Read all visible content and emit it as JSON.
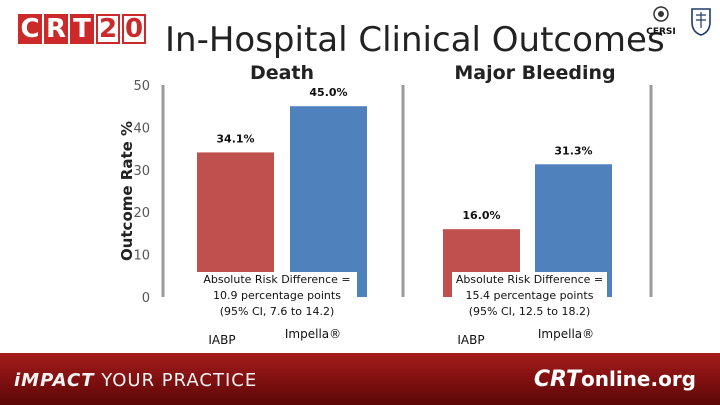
{
  "header": {
    "logo_letters": [
      "C",
      "R",
      "T",
      "2",
      "0"
    ],
    "title": "In-Hospital Clinical Outcomes",
    "cersi_label": "CERSI"
  },
  "chart_data": [
    {
      "type": "bar",
      "title": "Death",
      "ylabel": "Outcome Rate %",
      "ylim": [
        0,
        50
      ],
      "yticks": [
        0,
        10,
        20,
        30,
        40,
        50
      ],
      "categories": [
        "IABP",
        "Impella®"
      ],
      "values": [
        34.1,
        45.0
      ],
      "data_labels": [
        "34.1%",
        "45.0%"
      ],
      "colors": [
        "#c0504d",
        "#4f81bd"
      ],
      "annotation": [
        "Absolute Risk Difference =",
        "10.9 percentage points",
        "(95% CI, 7.6 to 14.2)"
      ]
    },
    {
      "type": "bar",
      "title": "Major Bleeding",
      "categories": [
        "IABP",
        "Impella®"
      ],
      "values": [
        16.0,
        31.3
      ],
      "data_labels": [
        "16.0%",
        "31.3%"
      ],
      "colors": [
        "#c0504d",
        "#4f81bd"
      ],
      "annotation": [
        "Absolute Risk Difference =",
        "15.4 percentage points",
        "(95% CI, 12.5 to 18.2)"
      ]
    }
  ],
  "footer": {
    "tagline_prefix": "iMPACT",
    "tagline_rest": " YOUR PRACTICE",
    "site_prefix": "CRT",
    "site_rest": "online.org"
  }
}
